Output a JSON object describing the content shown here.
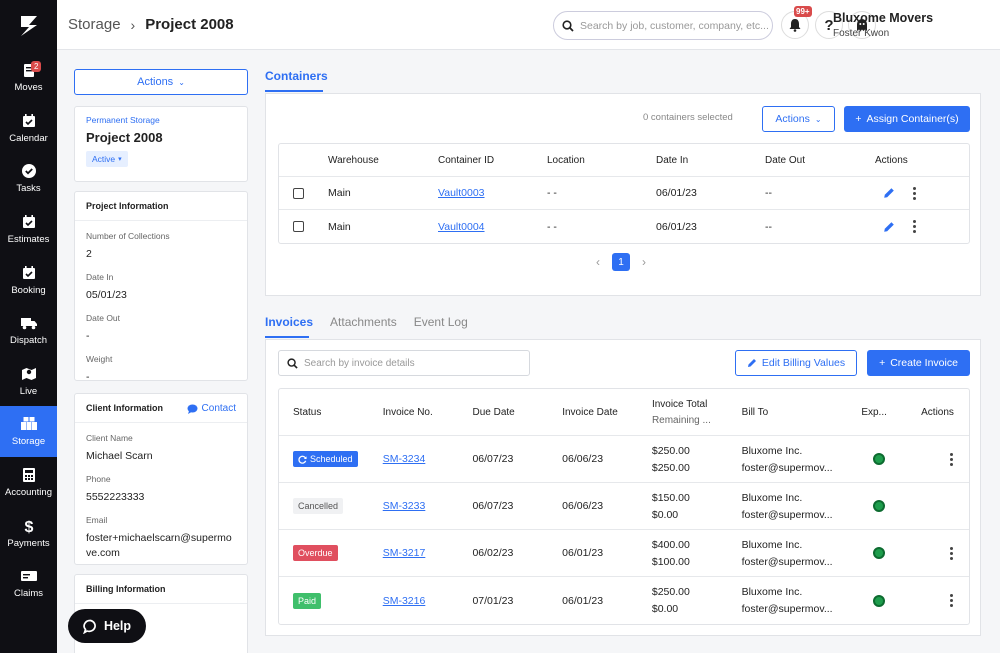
{
  "nav": {
    "items": [
      {
        "label": "Moves",
        "icon": "moves-icon",
        "badge": "2"
      },
      {
        "label": "Calendar",
        "icon": "calendar-icon"
      },
      {
        "label": "Tasks",
        "icon": "tasks-icon"
      },
      {
        "label": "Estimates",
        "icon": "estimates-icon"
      },
      {
        "label": "Booking",
        "icon": "booking-icon"
      },
      {
        "label": "Dispatch",
        "icon": "truck-icon"
      },
      {
        "label": "Live",
        "icon": "map-icon"
      },
      {
        "label": "Storage",
        "icon": "storage-icon",
        "active": true
      },
      {
        "label": "Accounting",
        "icon": "calculator-icon"
      },
      {
        "label": "Payments",
        "icon": "dollar-icon"
      },
      {
        "label": "Claims",
        "icon": "claims-icon"
      }
    ],
    "accent": "#2e6ff3"
  },
  "header": {
    "crumb_root": "Storage",
    "crumb_current": "Project 2008",
    "search_placeholder": "Search by job, customer, company, etc...",
    "notif_badge": "99+",
    "company": "Bluxome Movers",
    "user": "Foster Kwon"
  },
  "left": {
    "actions_label": "Actions",
    "storage_type": "Permanent Storage",
    "project_title": "Project 2008",
    "status": "Active",
    "project_info_title": "Project Information",
    "project_fields": [
      {
        "label": "Number of Collections",
        "value": "2"
      },
      {
        "label": "Date In",
        "value": "05/01/23"
      },
      {
        "label": "Date Out",
        "value": "-"
      },
      {
        "label": "Weight",
        "value": "-"
      }
    ],
    "client_info_title": "Client Information",
    "contact_label": "Contact",
    "client_fields": [
      {
        "label": "Client Name",
        "value": "Michael Scarn"
      },
      {
        "label": "Phone",
        "value": "5552223333"
      },
      {
        "label": "Email",
        "value": "foster+michaelscarn@supermove.com"
      }
    ],
    "billing_title": "Billing Information"
  },
  "containers": {
    "tab_label": "Containers",
    "selected_text": "0 containers selected",
    "actions_label": "Actions",
    "assign_label": "Assign Container(s)",
    "columns": [
      "Warehouse",
      "Container ID",
      "Location",
      "Date In",
      "Date Out",
      "Actions"
    ],
    "rows": [
      {
        "warehouse": "Main",
        "container_id": "Vault0003",
        "location": "- -",
        "date_in": "06/01/23",
        "date_out": "--"
      },
      {
        "warehouse": "Main",
        "container_id": "Vault0004",
        "location": "- -",
        "date_in": "06/01/23",
        "date_out": "--"
      }
    ],
    "page": "1"
  },
  "invoices": {
    "tabs": [
      "Invoices",
      "Attachments",
      "Event Log"
    ],
    "search_placeholder": "Search by invoice details",
    "edit_billing_label": "Edit Billing Values",
    "create_label": "Create Invoice",
    "columns": {
      "status": "Status",
      "number": "Invoice No.",
      "due": "Due Date",
      "date": "Invoice Date",
      "total": "Invoice Total",
      "remaining": "Remaining ...",
      "bill_to": "Bill To",
      "exp": "Exp...",
      "actions": "Actions"
    },
    "rows": [
      {
        "status": "Scheduled",
        "kind": "sched",
        "number": "SM-3234",
        "due": "06/07/23",
        "date": "06/06/23",
        "total": "$250.00",
        "remaining": "$250.00",
        "company": "Bluxome Inc.",
        "email": "foster@supermov...",
        "menu": true
      },
      {
        "status": "Cancelled",
        "kind": "canc",
        "number": "SM-3233",
        "due": "06/07/23",
        "date": "06/06/23",
        "total": "$150.00",
        "remaining": "$0.00",
        "company": "Bluxome Inc.",
        "email": "foster@supermov...",
        "menu": false
      },
      {
        "status": "Overdue",
        "kind": "over",
        "number": "SM-3217",
        "due": "06/02/23",
        "date": "06/01/23",
        "total": "$400.00",
        "remaining": "$100.00",
        "company": "Bluxome Inc.",
        "email": "foster@supermov...",
        "menu": true
      },
      {
        "status": "Paid",
        "kind": "paid",
        "number": "SM-3216",
        "due": "07/01/23",
        "date": "06/01/23",
        "total": "$250.00",
        "remaining": "$0.00",
        "company": "Bluxome Inc.",
        "email": "foster@supermov...",
        "menu": true
      }
    ]
  },
  "help_label": "Help"
}
